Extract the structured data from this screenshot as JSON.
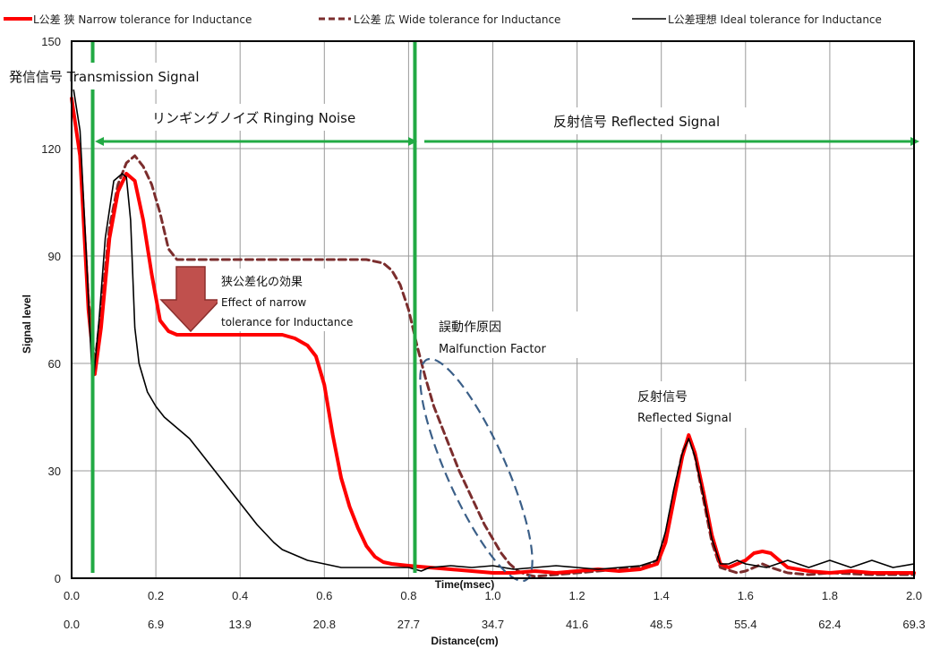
{
  "chart_data": {
    "type": "line",
    "title": "",
    "ylabel": "Signal level",
    "xlabel": "Time(msec)",
    "x2label": "Distance(cm)",
    "ylim": [
      0,
      150
    ],
    "xlim": [
      0,
      2.0
    ],
    "y_ticks": [
      "0",
      "30",
      "60",
      "90",
      "120",
      "150"
    ],
    "x_ticks": [
      "0.0",
      "0.2",
      "0.4",
      "0.6",
      "0.8",
      "1.0",
      "1.2",
      "1.4",
      "1.6",
      "1.8",
      "2.0"
    ],
    "x2_ticks": [
      "0.0",
      "6.9",
      "13.9",
      "20.8",
      "27.7",
      "34.7",
      "41.6",
      "48.5",
      "55.4",
      "62.4",
      "69.3"
    ],
    "grid": true,
    "legend_position": "top",
    "series": [
      {
        "name": "L公差 狭 Narrow tolerance for Inductance",
        "color": "#ff0000",
        "style": "solid-thick",
        "points": [
          [
            0.0,
            134
          ],
          [
            0.02,
            118
          ],
          [
            0.04,
            75
          ],
          [
            0.055,
            57
          ],
          [
            0.07,
            70
          ],
          [
            0.09,
            95
          ],
          [
            0.11,
            108
          ],
          [
            0.13,
            113
          ],
          [
            0.15,
            111
          ],
          [
            0.17,
            100
          ],
          [
            0.19,
            85
          ],
          [
            0.21,
            72
          ],
          [
            0.23,
            69
          ],
          [
            0.25,
            68
          ],
          [
            0.3,
            68
          ],
          [
            0.4,
            68
          ],
          [
            0.5,
            68
          ],
          [
            0.53,
            67
          ],
          [
            0.56,
            65
          ],
          [
            0.58,
            62
          ],
          [
            0.6,
            54
          ],
          [
            0.62,
            40
          ],
          [
            0.64,
            28
          ],
          [
            0.66,
            20
          ],
          [
            0.68,
            14
          ],
          [
            0.7,
            9
          ],
          [
            0.72,
            6
          ],
          [
            0.74,
            4.5
          ],
          [
            0.76,
            4
          ],
          [
            0.8,
            3.5
          ],
          [
            0.85,
            3
          ],
          [
            0.9,
            2.5
          ],
          [
            0.95,
            2
          ],
          [
            1.0,
            1.5
          ],
          [
            1.05,
            1.5
          ],
          [
            1.1,
            2
          ],
          [
            1.15,
            1.5
          ],
          [
            1.2,
            2
          ],
          [
            1.25,
            2.5
          ],
          [
            1.3,
            2
          ],
          [
            1.35,
            2.5
          ],
          [
            1.39,
            4
          ],
          [
            1.41,
            10
          ],
          [
            1.43,
            22
          ],
          [
            1.45,
            34
          ],
          [
            1.465,
            40
          ],
          [
            1.48,
            35
          ],
          [
            1.5,
            24
          ],
          [
            1.52,
            12
          ],
          [
            1.54,
            4
          ],
          [
            1.56,
            3
          ],
          [
            1.58,
            4
          ],
          [
            1.6,
            5
          ],
          [
            1.62,
            7
          ],
          [
            1.64,
            7.5
          ],
          [
            1.66,
            7
          ],
          [
            1.68,
            5
          ],
          [
            1.7,
            3
          ],
          [
            1.75,
            2
          ],
          [
            1.8,
            1.5
          ],
          [
            1.85,
            2
          ],
          [
            1.9,
            1.5
          ],
          [
            1.95,
            1.5
          ],
          [
            2.0,
            1.5
          ]
        ]
      },
      {
        "name": "L公差 広 Wide tolerance for Inductance",
        "color": "#7b2d2d",
        "style": "dashed",
        "points": [
          [
            0.0,
            134
          ],
          [
            0.02,
            118
          ],
          [
            0.04,
            78
          ],
          [
            0.055,
            60
          ],
          [
            0.07,
            75
          ],
          [
            0.09,
            98
          ],
          [
            0.11,
            110
          ],
          [
            0.13,
            116
          ],
          [
            0.15,
            118
          ],
          [
            0.17,
            115
          ],
          [
            0.19,
            110
          ],
          [
            0.21,
            102
          ],
          [
            0.23,
            92
          ],
          [
            0.25,
            89
          ],
          [
            0.3,
            89
          ],
          [
            0.4,
            89
          ],
          [
            0.5,
            89
          ],
          [
            0.6,
            89
          ],
          [
            0.7,
            89
          ],
          [
            0.74,
            88
          ],
          [
            0.76,
            86
          ],
          [
            0.78,
            82
          ],
          [
            0.8,
            75
          ],
          [
            0.82,
            65
          ],
          [
            0.84,
            56
          ],
          [
            0.86,
            48
          ],
          [
            0.88,
            42
          ],
          [
            0.9,
            36
          ],
          [
            0.92,
            30
          ],
          [
            0.94,
            25
          ],
          [
            0.96,
            20
          ],
          [
            0.98,
            15
          ],
          [
            1.0,
            11
          ],
          [
            1.02,
            7
          ],
          [
            1.04,
            4
          ],
          [
            1.06,
            2
          ],
          [
            1.08,
            1
          ],
          [
            1.1,
            0.5
          ],
          [
            1.15,
            1
          ],
          [
            1.2,
            1.5
          ],
          [
            1.25,
            2
          ],
          [
            1.3,
            2.5
          ],
          [
            1.35,
            3
          ],
          [
            1.39,
            5
          ],
          [
            1.41,
            12
          ],
          [
            1.43,
            24
          ],
          [
            1.45,
            35
          ],
          [
            1.465,
            40
          ],
          [
            1.48,
            34
          ],
          [
            1.5,
            22
          ],
          [
            1.52,
            10
          ],
          [
            1.54,
            3
          ],
          [
            1.58,
            1.5
          ],
          [
            1.6,
            2
          ],
          [
            1.62,
            3
          ],
          [
            1.64,
            4
          ],
          [
            1.66,
            3
          ],
          [
            1.7,
            1.5
          ],
          [
            1.75,
            1
          ],
          [
            1.8,
            1.5
          ],
          [
            1.9,
            1
          ],
          [
            2.0,
            1
          ]
        ]
      },
      {
        "name": "L公差理想 Ideal tolerance for Inductance",
        "color": "#000000",
        "style": "solid-thin",
        "points": [
          [
            0.0,
            140
          ],
          [
            0.02,
            125
          ],
          [
            0.035,
            90
          ],
          [
            0.05,
            53
          ],
          [
            0.065,
            72
          ],
          [
            0.08,
            95
          ],
          [
            0.1,
            111
          ],
          [
            0.12,
            113
          ],
          [
            0.13,
            112
          ],
          [
            0.14,
            100
          ],
          [
            0.15,
            70
          ],
          [
            0.16,
            60
          ],
          [
            0.18,
            52
          ],
          [
            0.2,
            48
          ],
          [
            0.22,
            45
          ],
          [
            0.24,
            43
          ],
          [
            0.26,
            41
          ],
          [
            0.28,
            39
          ],
          [
            0.3,
            36
          ],
          [
            0.32,
            33
          ],
          [
            0.34,
            30
          ],
          [
            0.36,
            27
          ],
          [
            0.38,
            24
          ],
          [
            0.4,
            21
          ],
          [
            0.42,
            18
          ],
          [
            0.44,
            15
          ],
          [
            0.46,
            12.5
          ],
          [
            0.48,
            10
          ],
          [
            0.5,
            8
          ],
          [
            0.52,
            7
          ],
          [
            0.54,
            6
          ],
          [
            0.56,
            5
          ],
          [
            0.58,
            4.5
          ],
          [
            0.6,
            4
          ],
          [
            0.62,
            3.5
          ],
          [
            0.64,
            3
          ],
          [
            0.7,
            3
          ],
          [
            0.75,
            3
          ],
          [
            0.8,
            3
          ],
          [
            0.83,
            2
          ],
          [
            0.85,
            3
          ],
          [
            0.9,
            3.5
          ],
          [
            0.95,
            3
          ],
          [
            1.0,
            3.5
          ],
          [
            1.05,
            2.5
          ],
          [
            1.1,
            3
          ],
          [
            1.15,
            3.5
          ],
          [
            1.2,
            3
          ],
          [
            1.25,
            2.5
          ],
          [
            1.3,
            3
          ],
          [
            1.35,
            3.5
          ],
          [
            1.39,
            5
          ],
          [
            1.41,
            13
          ],
          [
            1.43,
            25
          ],
          [
            1.45,
            35
          ],
          [
            1.465,
            39
          ],
          [
            1.48,
            34
          ],
          [
            1.5,
            23
          ],
          [
            1.52,
            11
          ],
          [
            1.54,
            4
          ],
          [
            1.56,
            4
          ],
          [
            1.58,
            5
          ],
          [
            1.6,
            4
          ],
          [
            1.65,
            3
          ],
          [
            1.7,
            5
          ],
          [
            1.75,
            3
          ],
          [
            1.8,
            5
          ],
          [
            1.85,
            3
          ],
          [
            1.9,
            5
          ],
          [
            1.95,
            3
          ],
          [
            2.0,
            4
          ]
        ]
      }
    ],
    "markers": [
      {
        "name": "transmission-marker",
        "x": 0.05,
        "color": "#22aa44"
      },
      {
        "name": "reflected-start-marker",
        "x": 0.815,
        "color": "#22aa44"
      }
    ],
    "annotations": {
      "transmission": "発信信号 Transmission Signal",
      "ringing": "リンギングノイズ Ringing Noise",
      "reflected": "反射信号 Reflected Signal",
      "effect_line1": "狭公差化の効果",
      "effect_line2": "Effect of narrow",
      "effect_line3": "tolerance for Inductance",
      "malfunction_line1": "誤動作原因",
      "malfunction_line2": "Malfunction Factor",
      "reflected_peak_line1": "反射信号",
      "reflected_peak_line2": "Reflected Signal"
    }
  }
}
